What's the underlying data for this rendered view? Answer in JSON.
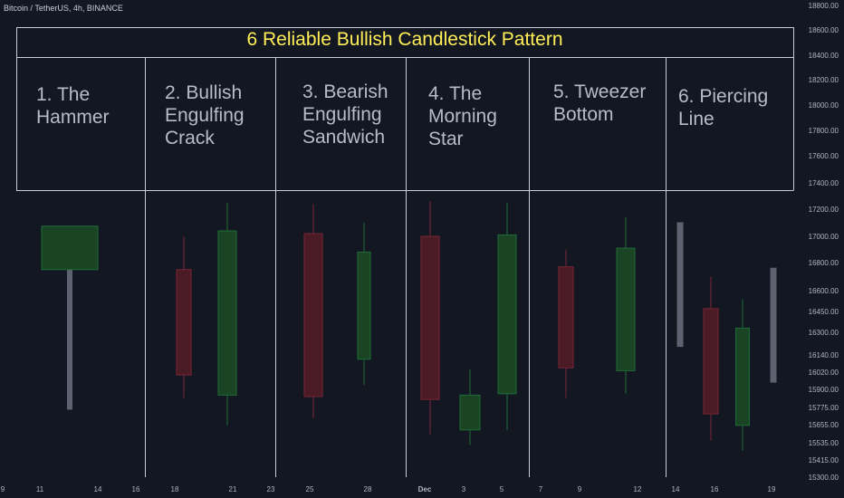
{
  "header": {
    "symbol": "Bitcoin / TetherUS, 4h, BINANCE"
  },
  "chart_data": {
    "type": "candlestick",
    "title": "6 Reliable Bullish Candlestick Pattern",
    "patterns": [
      {
        "label": "1. The\nHammer"
      },
      {
        "label": "2. Bullish\nEngulfing\nCrack"
      },
      {
        "label": "3. Bearish\nEngulfing\nSandwich"
      },
      {
        "label": "4. The\nMorning\nStar"
      },
      {
        "label": "5. Tweezer\nBottom"
      },
      {
        "label": "6. Piercing\nLine"
      }
    ],
    "y_axis": {
      "range": [
        15300,
        18800
      ],
      "ticks": [
        "18800.00",
        "18600.00",
        "18400.00",
        "18200.00",
        "18000.00",
        "17800.00",
        "17600.00",
        "17400.00",
        "17200.00",
        "17000.00",
        "16800.00",
        "16600.00",
        "16450.00",
        "16300.00",
        "16140.00",
        "16020.00",
        "15900.00",
        "15775.00",
        "15655.00",
        "15535.00",
        "15415.00",
        "15300.00"
      ]
    },
    "x_axis": {
      "ticks": [
        "9",
        "11",
        "14",
        "16",
        "18",
        "21",
        "23",
        "25",
        "28",
        "Dec",
        "3",
        "5",
        "7",
        "9",
        "12",
        "14",
        "16",
        "19"
      ]
    },
    "candles": [
      {
        "direction": "up",
        "open": 16750,
        "close": 17075,
        "high": 17075,
        "low": 15760
      },
      {
        "direction": "down",
        "open": 16750,
        "close": 16000,
        "high": 17000,
        "low": 15840
      },
      {
        "direction": "up",
        "open": 15860,
        "close": 17040,
        "high": 17250,
        "low": 15650
      },
      {
        "direction": "down",
        "open": 17020,
        "close": 15850,
        "high": 17240,
        "low": 15700
      },
      {
        "direction": "up",
        "open": 16110,
        "close": 16880,
        "high": 17100,
        "low": 15930
      },
      {
        "direction": "down",
        "open": 17000,
        "close": 15830,
        "high": 17260,
        "low": 15590
      },
      {
        "direction": "up",
        "open": 15620,
        "close": 15860,
        "high": 16040,
        "low": 15520
      },
      {
        "direction": "up",
        "open": 15870,
        "close": 17010,
        "high": 17250,
        "low": 15620
      },
      {
        "direction": "down",
        "open": 16770,
        "close": 16050,
        "high": 16900,
        "low": 15840
      },
      {
        "direction": "up",
        "open": 16030,
        "close": 16910,
        "high": 17140,
        "low": 15870
      },
      {
        "direction": "gray",
        "open": 17100,
        "close": 16200,
        "high": 17100,
        "low": 16200
      },
      {
        "direction": "down",
        "open": 16470,
        "close": 15730,
        "high": 16700,
        "low": 15550
      },
      {
        "direction": "up",
        "open": 15650,
        "close": 16330,
        "high": 16540,
        "low": 15480
      },
      {
        "direction": "gray",
        "open": 16760,
        "close": 15950,
        "high": 16760,
        "low": 15950
      }
    ],
    "colors": {
      "background": "#131722",
      "title": "#ffee58",
      "grid_line": "#c8ccd4",
      "up_fill": "#1a4424",
      "up_stroke": "#1f6b35",
      "down_fill": "#4a1b25",
      "down_stroke": "#7a2535",
      "gray": "#5d6270"
    }
  }
}
